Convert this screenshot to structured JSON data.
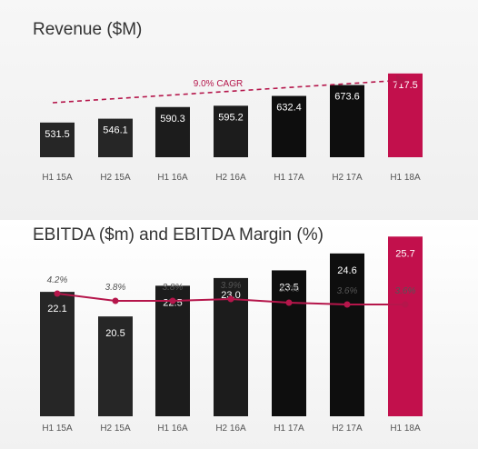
{
  "chart_data": [
    {
      "type": "bar",
      "title": "Revenue ($M)",
      "categories": [
        "H1 15A",
        "H2 15A",
        "H1 16A",
        "H2 16A",
        "H1 17A",
        "H2 17A",
        "H1 18A"
      ],
      "values": [
        531.5,
        546.1,
        590.3,
        595.2,
        632.4,
        673.6,
        717.5
      ],
      "value_labels": [
        "531.5",
        "546.1",
        "590.3",
        "595.2",
        "632.4",
        "673.6",
        "717.5"
      ],
      "annotation": "9.0% CAGR",
      "highlight_index": 6,
      "colors": [
        "#262626",
        "#262626",
        "#1c1c1c",
        "#1c1c1c",
        "#0e0e0e",
        "#0e0e0e",
        "#c2104c"
      ],
      "accent_color": "#b5164b",
      "grid": false,
      "legend": "none"
    },
    {
      "type": "bar",
      "title": "EBITDA ($m) and EBITDA Margin (%)",
      "categories": [
        "H1 15A",
        "H2 15A",
        "H1 16A",
        "H2 16A",
        "H1 17A",
        "H2 17A",
        "H1 18A"
      ],
      "series": [
        {
          "type": "bar",
          "values": [
            22.1,
            20.5,
            22.5,
            23.0,
            23.5,
            24.6,
            25.7
          ],
          "value_labels": [
            "22.1",
            "20.5",
            "22.5",
            "23.0",
            "23.5",
            "24.6",
            "25.7"
          ]
        },
        {
          "type": "line",
          "values": [
            4.2,
            3.8,
            3.8,
            3.9,
            3.7,
            3.6,
            3.6
          ],
          "value_labels": [
            "4.2%",
            "3.8%",
            "3.8%",
            "3.9%",
            "3.7%",
            "3.6%",
            "3.6%"
          ],
          "color": "#b5164b"
        }
      ],
      "highlight_index": 6,
      "colors": [
        "#262626",
        "#262626",
        "#1c1c1c",
        "#1c1c1c",
        "#0e0e0e",
        "#0e0e0e",
        "#c2104c"
      ],
      "grid": false,
      "legend": "none"
    }
  ]
}
